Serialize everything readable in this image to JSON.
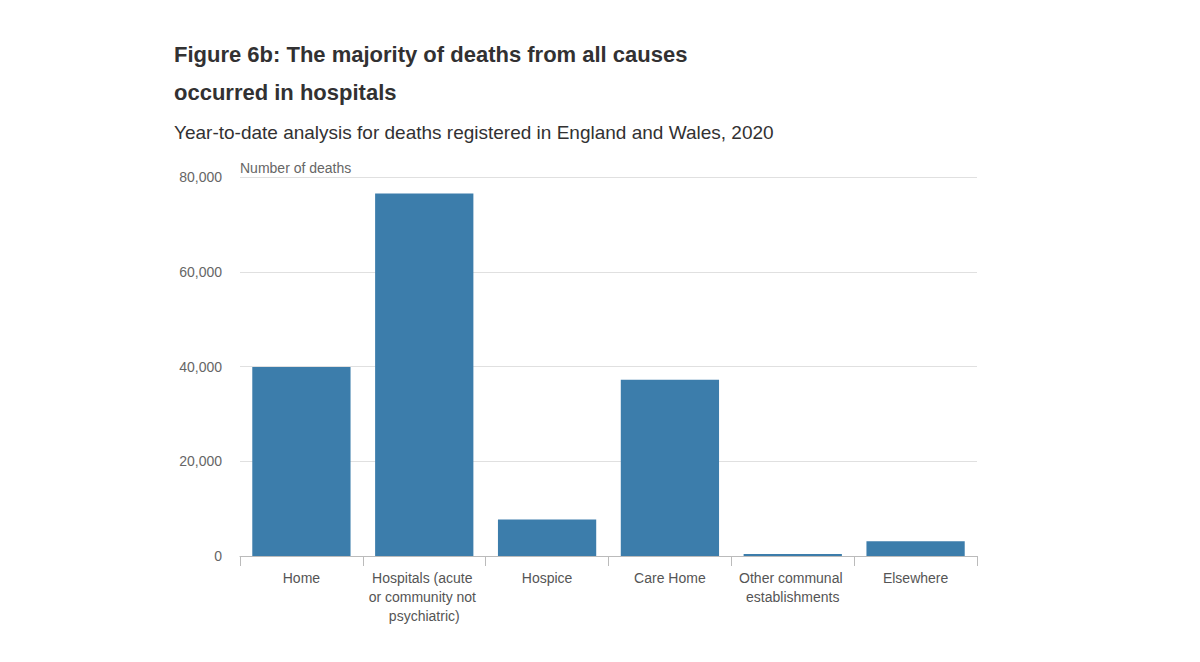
{
  "chart_data": {
    "type": "bar",
    "title": "Figure 6b: The majority of deaths from all causes occurred in hospitals",
    "subtitle": "Year-to-date analysis for deaths registered in England and Wales, 2020",
    "y_label": "Number of deaths",
    "categories": [
      "Home",
      "Hospitals (acute or community not psychiatric)",
      "Hospice",
      "Care Home",
      "Other communal establishments",
      "Elsewhere"
    ],
    "values": [
      39900,
      76500,
      7700,
      37200,
      400,
      3100
    ],
    "color": "#3c7dab",
    "ylim": [
      0,
      80000
    ],
    "yticks": [
      0,
      {
        "value": 20000,
        "label": "20,000"
      },
      {
        "value": 40000,
        "label": "40,000"
      },
      {
        "value": 60000,
        "label": "60,000"
      },
      {
        "value": 80000,
        "label": "80,000"
      }
    ],
    "grid": true
  }
}
